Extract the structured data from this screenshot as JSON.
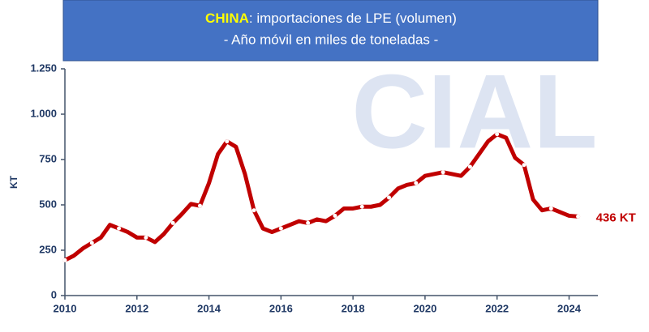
{
  "chart_data": {
    "type": "line",
    "title_highlight": "CHINA",
    "title": ": importaciones de LPE (volumen)",
    "subtitle": "- Año móvil en miles de toneladas -",
    "ylabel": "KT",
    "watermark": "CIAL",
    "x": [
      2010,
      2010.25,
      2010.5,
      2010.75,
      2011,
      2011.25,
      2011.5,
      2011.75,
      2012,
      2012.25,
      2012.5,
      2012.75,
      2013,
      2013.25,
      2013.5,
      2013.75,
      2014,
      2014.25,
      2014.5,
      2014.75,
      2015,
      2015.25,
      2015.5,
      2015.75,
      2016,
      2016.25,
      2016.5,
      2016.75,
      2017,
      2017.25,
      2017.5,
      2017.75,
      2018,
      2018.25,
      2018.5,
      2018.75,
      2019,
      2019.25,
      2019.5,
      2019.75,
      2020,
      2020.25,
      2020.5,
      2020.75,
      2021,
      2021.25,
      2021.5,
      2021.75,
      2022,
      2022.25,
      2022.5,
      2022.75,
      2023,
      2023.25,
      2023.5,
      2023.75,
      2024,
      2024.25
    ],
    "series": [
      {
        "name": "China",
        "color": "#c00000",
        "values": [
          195,
          220,
          260,
          290,
          320,
          390,
          370,
          350,
          320,
          320,
          295,
          340,
          400,
          450,
          505,
          495,
          620,
          780,
          850,
          820,
          670,
          470,
          370,
          350,
          370,
          390,
          410,
          400,
          420,
          410,
          440,
          480,
          480,
          490,
          490,
          500,
          540,
          590,
          610,
          620,
          660,
          670,
          680,
          670,
          660,
          710,
          780,
          850,
          890,
          870,
          760,
          720,
          530,
          470,
          480,
          460,
          440,
          436
        ],
        "value_labels": [
          null,
          null,
          null,
          null,
          null,
          null,
          null,
          null,
          null,
          null,
          null,
          null,
          null,
          null,
          null,
          null,
          null,
          null,
          null,
          null,
          null,
          null,
          null,
          null,
          null,
          null,
          null,
          null,
          null,
          null,
          null,
          null,
          null,
          null,
          null,
          null,
          null,
          null,
          null,
          null,
          null,
          null,
          null,
          null,
          null,
          null,
          null,
          null,
          null,
          null,
          null,
          null,
          null,
          null,
          null,
          null,
          null,
          "436 KT"
        ]
      }
    ],
    "xlim": [
      2010,
      2024.8
    ],
    "xticks": [
      2010,
      2012,
      2014,
      2016,
      2018,
      2020,
      2022,
      2024
    ],
    "ylim": [
      0,
      1250
    ],
    "yticks": [
      0,
      250,
      500,
      750,
      {
        "value": 1000,
        "label": "1.000"
      },
      {
        "value": 1250,
        "label": "1.250"
      }
    ]
  }
}
